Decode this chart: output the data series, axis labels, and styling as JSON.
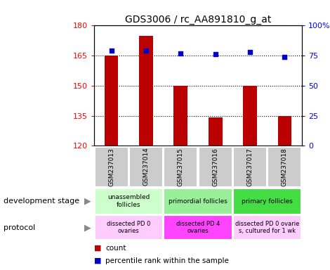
{
  "title": "GDS3006 / rc_AA891810_g_at",
  "samples": [
    "GSM237013",
    "GSM237014",
    "GSM237015",
    "GSM237016",
    "GSM237017",
    "GSM237018"
  ],
  "counts": [
    165,
    175,
    150,
    134,
    150,
    135
  ],
  "percentiles": [
    79,
    79,
    77,
    76,
    78,
    74
  ],
  "ylim_left": [
    120,
    180
  ],
  "ylim_right": [
    0,
    100
  ],
  "yticks_left": [
    120,
    135,
    150,
    165,
    180
  ],
  "yticks_right": [
    0,
    25,
    50,
    75,
    100
  ],
  "ytick_labels_right": [
    "0",
    "25",
    "50",
    "75",
    "100%"
  ],
  "bar_color": "#bb0000",
  "dot_color": "#0000cc",
  "dev_stage_groups": [
    {
      "label": "unassembled\nfollicles",
      "span": [
        0,
        2
      ],
      "color": "#ccffcc"
    },
    {
      "label": "primordial follicles",
      "span": [
        2,
        4
      ],
      "color": "#99ee99"
    },
    {
      "label": "primary follicles",
      "span": [
        4,
        6
      ],
      "color": "#44dd44"
    }
  ],
  "protocol_groups": [
    {
      "label": "dissected PD 0\novaries",
      "span": [
        0,
        2
      ],
      "color": "#ffccff"
    },
    {
      "label": "dissected PD 4\novaries",
      "span": [
        2,
        4
      ],
      "color": "#ff44ff"
    },
    {
      "label": "dissected PD 0 ovarie\ns, cultured for 1 wk",
      "span": [
        4,
        6
      ],
      "color": "#ffccff"
    }
  ],
  "left_labels": [
    "development stage",
    "protocol"
  ],
  "legend_items": [
    "count",
    "percentile rank within the sample"
  ],
  "legend_colors": [
    "#bb0000",
    "#0000cc"
  ],
  "sample_bg_color": "#cccccc",
  "fig_width": 4.7,
  "fig_height": 3.84,
  "dpi": 100
}
